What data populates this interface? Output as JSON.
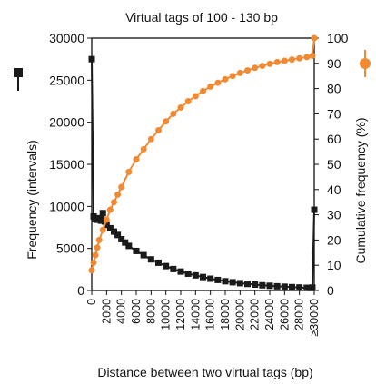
{
  "chart_data": {
    "type": "line",
    "title": "Virtual tags of 100 - 130 bp",
    "xlabel": "Distance between two virtual tags (bp)",
    "ylabel_left": "Frequency (intervals)",
    "ylabel_right": "Cumulative frequency (%)",
    "x_tick_labels": [
      "0",
      "2000",
      "4000",
      "6000",
      "8000",
      "10000",
      "12000",
      "14000",
      "16000",
      "18000",
      "20000",
      "22000",
      "24000",
      "26000",
      "28000",
      "≥30000"
    ],
    "x_tick_values": [
      0,
      2000,
      4000,
      6000,
      8000,
      10000,
      12000,
      14000,
      16000,
      18000,
      20000,
      22000,
      24000,
      26000,
      28000,
      30000
    ],
    "xlim": [
      0,
      30000
    ],
    "y_left_ticks": [
      0,
      5000,
      10000,
      15000,
      20000,
      25000,
      30000
    ],
    "y_left_lim": [
      0,
      30000
    ],
    "y_right_ticks": [
      0,
      10,
      20,
      30,
      40,
      50,
      60,
      70,
      80,
      90,
      100
    ],
    "y_right_lim": [
      0,
      100
    ],
    "legend": "right side, beside the y-axes",
    "grid": false,
    "series": [
      {
        "name": "",
        "axis": "left",
        "color": "#1a1a1a",
        "marker": "square",
        "x": [
          0,
          250,
          500,
          750,
          1000,
          1250,
          1500,
          1750,
          2000,
          2500,
          3000,
          3500,
          4000,
          4500,
          5000,
          6000,
          7000,
          8000,
          9000,
          10000,
          11000,
          12000,
          13000,
          14000,
          15000,
          16000,
          17000,
          18000,
          19000,
          20000,
          21000,
          22000,
          23000,
          24000,
          25000,
          26000,
          27000,
          28000,
          29000,
          29500,
          29750,
          30000
        ],
        "y": [
          27500,
          8800,
          8500,
          8400,
          8600,
          8300,
          9200,
          8200,
          7800,
          7400,
          7000,
          6600,
          6100,
          5700,
          5300,
          4700,
          4200,
          3700,
          3300,
          2900,
          2550,
          2250,
          2000,
          1800,
          1600,
          1400,
          1250,
          1100,
          980,
          870,
          780,
          700,
          620,
          560,
          500,
          450,
          400,
          360,
          320,
          300,
          350,
          9600
        ]
      },
      {
        "name": "",
        "axis": "right",
        "color": "#f28a33",
        "marker": "circle",
        "x": [
          0,
          250,
          500,
          750,
          1000,
          1500,
          2000,
          2500,
          3000,
          3500,
          4000,
          5000,
          6000,
          7000,
          8000,
          9000,
          10000,
          11000,
          12000,
          13000,
          14000,
          15000,
          16000,
          17000,
          18000,
          19000,
          20000,
          21000,
          22000,
          23000,
          24000,
          25000,
          26000,
          27000,
          28000,
          29000,
          29750,
          30000
        ],
        "y": [
          8,
          11,
          14,
          17,
          20,
          24,
          28,
          32,
          35,
          38,
          41,
          47,
          52,
          56,
          60,
          63.5,
          67,
          70,
          72.5,
          75,
          77,
          79,
          80.8,
          82.3,
          83.7,
          85,
          86.2,
          87.2,
          88.2,
          89,
          89.8,
          90.5,
          91,
          91.5,
          92,
          92.5,
          93,
          100
        ]
      }
    ]
  },
  "legend_marker_left": "black square marker",
  "legend_marker_right": "orange circle marker"
}
